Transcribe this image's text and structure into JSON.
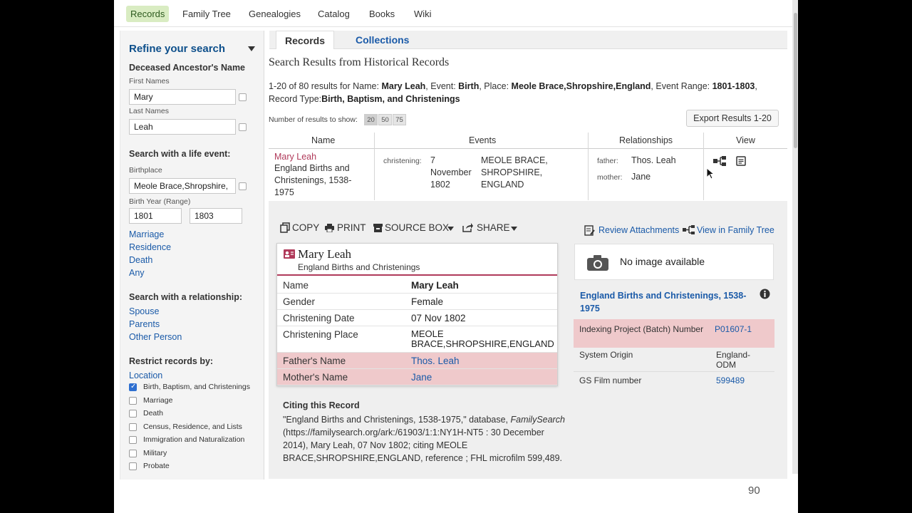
{
  "nav": {
    "items": [
      "Records",
      "Family Tree",
      "Genealogies",
      "Catalog",
      "Books",
      "Wiki"
    ]
  },
  "sidebar": {
    "title": "Refine your search",
    "deceased_heading": "Deceased Ancestor's Name",
    "first_names_label": "First Names",
    "first_names_value": "Mary",
    "last_names_label": "Last Names",
    "last_names_value": "Leah",
    "life_event_heading": "Search with a life event:",
    "birthplace_label": "Birthplace",
    "birthplace_value": "Meole Brace,Shropshire,",
    "birth_year_label": "Birth Year (Range)",
    "birth_year_from": "1801",
    "birth_year_to": "1803",
    "event_links": [
      "Marriage",
      "Residence",
      "Death",
      "Any"
    ],
    "relationship_heading": "Search with a relationship:",
    "relationship_links": [
      "Spouse",
      "Parents",
      "Other Person"
    ],
    "restrict_heading": "Restrict records by:",
    "location_link": "Location",
    "record_types": [
      {
        "label": "Birth, Baptism, and Christenings",
        "checked": true
      },
      {
        "label": "Marriage",
        "checked": false
      },
      {
        "label": "Death",
        "checked": false
      },
      {
        "label": "Census, Residence, and Lists",
        "checked": false
      },
      {
        "label": "Immigration and Naturalization",
        "checked": false
      },
      {
        "label": "Military",
        "checked": false
      },
      {
        "label": "Probate",
        "checked": false
      }
    ]
  },
  "tabs": [
    "Records",
    "Collections"
  ],
  "results": {
    "title": "Search Results from Historical Records",
    "count_text": "1-20 of 80 results for",
    "name_label": "Name:",
    "name_value": "Mary Leah",
    "event_label": "Event:",
    "event_value": "Birth",
    "place_label": "Place:",
    "place_value": "Meole Brace,Shropshire,England",
    "range_label": "Event Range:",
    "range_value": "1801-1803",
    "record_type_label": "Record Type:",
    "record_type_value": "Birth, Baptism, and Christenings",
    "num_label": "Number of results to show:",
    "num_options": [
      "20",
      "50",
      "75"
    ],
    "export_label": "Export Results 1-20"
  },
  "table": {
    "headers": [
      "Name",
      "Events",
      "Relationships",
      "View"
    ],
    "row": {
      "name": "Mary Leah",
      "collection": "England Births and Christenings, 1538-1975",
      "event_type": "christening:",
      "event_date": "7 November 1802",
      "event_place": "MEOLE BRACE, SHROPSHIRE, ENGLAND",
      "father_label": "father:",
      "father": "Thos. Leah",
      "mother_label": "mother:",
      "mother": "Jane"
    }
  },
  "detail": {
    "tools": [
      "COPY",
      "PRINT",
      "SOURCE BOX",
      "SHARE"
    ],
    "review_attachments": "Review Attachments",
    "view_in_tree": "View in Family Tree",
    "card_name": "Mary Leah",
    "card_collection": "England Births and Christenings",
    "fields": [
      {
        "key": "Name",
        "value": "Mary Leah"
      },
      {
        "key": "Gender",
        "value": "Female"
      },
      {
        "key": "Christening Date",
        "value": "07 Nov 1802"
      },
      {
        "key": "Christening Place",
        "value": "MEOLE BRACE,SHROPSHIRE,ENGLAND"
      },
      {
        "key": "Father's Name",
        "value": "Thos. Leah"
      },
      {
        "key": "Mother's Name",
        "value": "Jane"
      }
    ],
    "no_image": "No image available",
    "collection_title": "England Births and Christenings, 1538-1975",
    "side_fields": [
      {
        "key": "Indexing Project (Batch) Number",
        "value": "P01607-1"
      },
      {
        "key": "System Origin",
        "value": "England-ODM"
      },
      {
        "key": "GS Film number",
        "value": "599489"
      }
    ],
    "citing_heading": "Citing this Record",
    "citation_1": "\"England Births and Christenings, 1538-1975,\" database,",
    "citation_italic": "FamilySearch",
    "citation_2": "(https://familysearch.org/ark:/61903/1:1:NY1H-NT5 : 30 December 2014), Mary Leah, 07 Nov 1802; citing MEOLE BRACE,SHROPSHIRE,ENGLAND, reference ; FHL microfilm 599,489."
  },
  "page_number": "90",
  "colors": {
    "link": "#1a5aa8",
    "highlight": "#efc9cb",
    "accent": "#b03a5a",
    "nav_active": "#d9ecc2"
  }
}
